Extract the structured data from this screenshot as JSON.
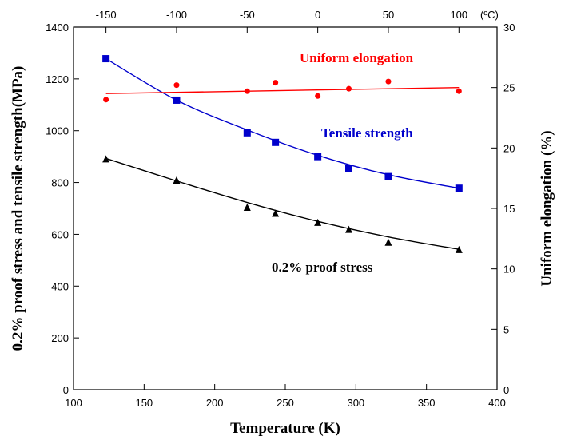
{
  "chart_data": {
    "type": "scatter",
    "xlabel": "Temperature (K)",
    "ylabel": "0.2% proof stress and tensile strength(MPa)",
    "y2label": "Uniform elongation (%)",
    "top_axis_unit": "(ºC)",
    "xlim": [
      100,
      400
    ],
    "ylim": [
      0,
      1400
    ],
    "y2lim": [
      0,
      30
    ],
    "x_ticks": [
      100,
      150,
      200,
      250,
      300,
      350,
      400
    ],
    "y_ticks": [
      0,
      200,
      400,
      600,
      800,
      1000,
      1200,
      1400
    ],
    "y2_ticks": [
      0,
      5,
      10,
      15,
      20,
      25,
      30
    ],
    "top_ticks": [
      -150,
      -100,
      -50,
      0,
      50,
      100
    ],
    "grid": false,
    "series": [
      {
        "name": "Tensile strength",
        "axis": "left",
        "marker": "square",
        "color": "#0000cc",
        "x": [
          123,
          173,
          223,
          243,
          273,
          295,
          323,
          373
        ],
        "y": [
          1278,
          1118,
          992,
          955,
          900,
          855,
          823,
          778
        ],
        "fit": [
          [
            123,
            1278
          ],
          [
            173,
            1118
          ],
          [
            223,
            1003
          ],
          [
            273,
            905
          ],
          [
            323,
            830
          ],
          [
            373,
            778
          ]
        ]
      },
      {
        "name": "0.2% proof stress",
        "axis": "left",
        "marker": "triangle",
        "color": "#000000",
        "x": [
          123,
          173,
          223,
          243,
          273,
          295,
          323,
          373
        ],
        "y": [
          890,
          808,
          703,
          680,
          645,
          618,
          568,
          540
        ],
        "fit": [
          [
            123,
            893
          ],
          [
            173,
            806
          ],
          [
            223,
            723
          ],
          [
            273,
            650
          ],
          [
            323,
            590
          ],
          [
            373,
            542
          ]
        ]
      },
      {
        "name": "Uniform elongation",
        "axis": "right",
        "marker": "circle",
        "color": "#ff0000",
        "x": [
          123,
          173,
          223,
          243,
          273,
          295,
          323,
          373
        ],
        "y": [
          24.0,
          25.2,
          24.7,
          25.4,
          24.3,
          24.9,
          25.5,
          24.7
        ],
        "fit": [
          [
            123,
            24.5
          ],
          [
            373,
            25.0
          ]
        ]
      }
    ],
    "annotations": [
      {
        "text": "Uniform elongation",
        "x": 375,
        "y": 78,
        "color": "#ff0000"
      },
      {
        "text": "Tensile strength",
        "x": 402,
        "y": 172,
        "color": "#0000cc"
      },
      {
        "text": "0.2% proof stress",
        "x": 340,
        "y": 340,
        "color": "#000000"
      }
    ]
  }
}
